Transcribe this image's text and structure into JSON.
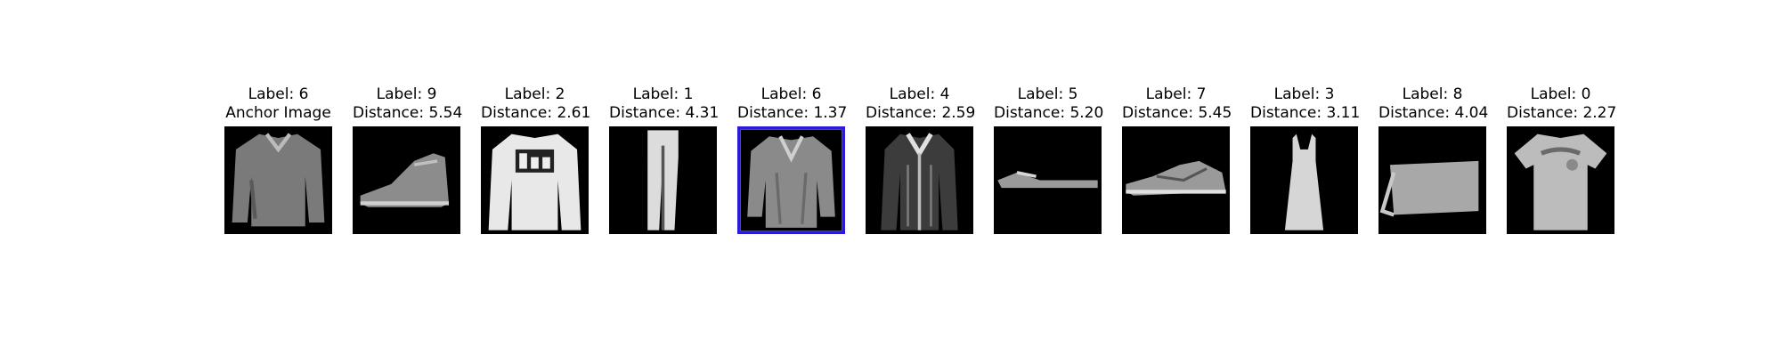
{
  "items": [
    {
      "label": "Label: 6",
      "caption": "Anchor Image",
      "icon": "shirt-image",
      "highlighted": false
    },
    {
      "label": "Label: 9",
      "caption": "Distance: 5.54",
      "icon": "ankle-boot-image",
      "highlighted": false
    },
    {
      "label": "Label: 2",
      "caption": "Distance: 2.61",
      "icon": "pullover-image",
      "highlighted": false
    },
    {
      "label": "Label: 1",
      "caption": "Distance: 4.31",
      "icon": "trouser-image",
      "highlighted": false
    },
    {
      "label": "Label: 6",
      "caption": "Distance: 1.37",
      "icon": "shirt-image",
      "highlighted": true
    },
    {
      "label": "Label: 4",
      "caption": "Distance: 2.59",
      "icon": "coat-image",
      "highlighted": false
    },
    {
      "label": "Label: 5",
      "caption": "Distance: 5.20",
      "icon": "sandal-image",
      "highlighted": false
    },
    {
      "label": "Label: 7",
      "caption": "Distance: 5.45",
      "icon": "sneaker-image",
      "highlighted": false
    },
    {
      "label": "Label: 3",
      "caption": "Distance: 3.11",
      "icon": "dress-image",
      "highlighted": false
    },
    {
      "label": "Label: 8",
      "caption": "Distance: 4.04",
      "icon": "bag-image",
      "highlighted": false
    },
    {
      "label": "Label: 0",
      "caption": "Distance: 2.27",
      "icon": "tshirt-image",
      "highlighted": false
    }
  ],
  "highlight_color": "#2b1bd8"
}
